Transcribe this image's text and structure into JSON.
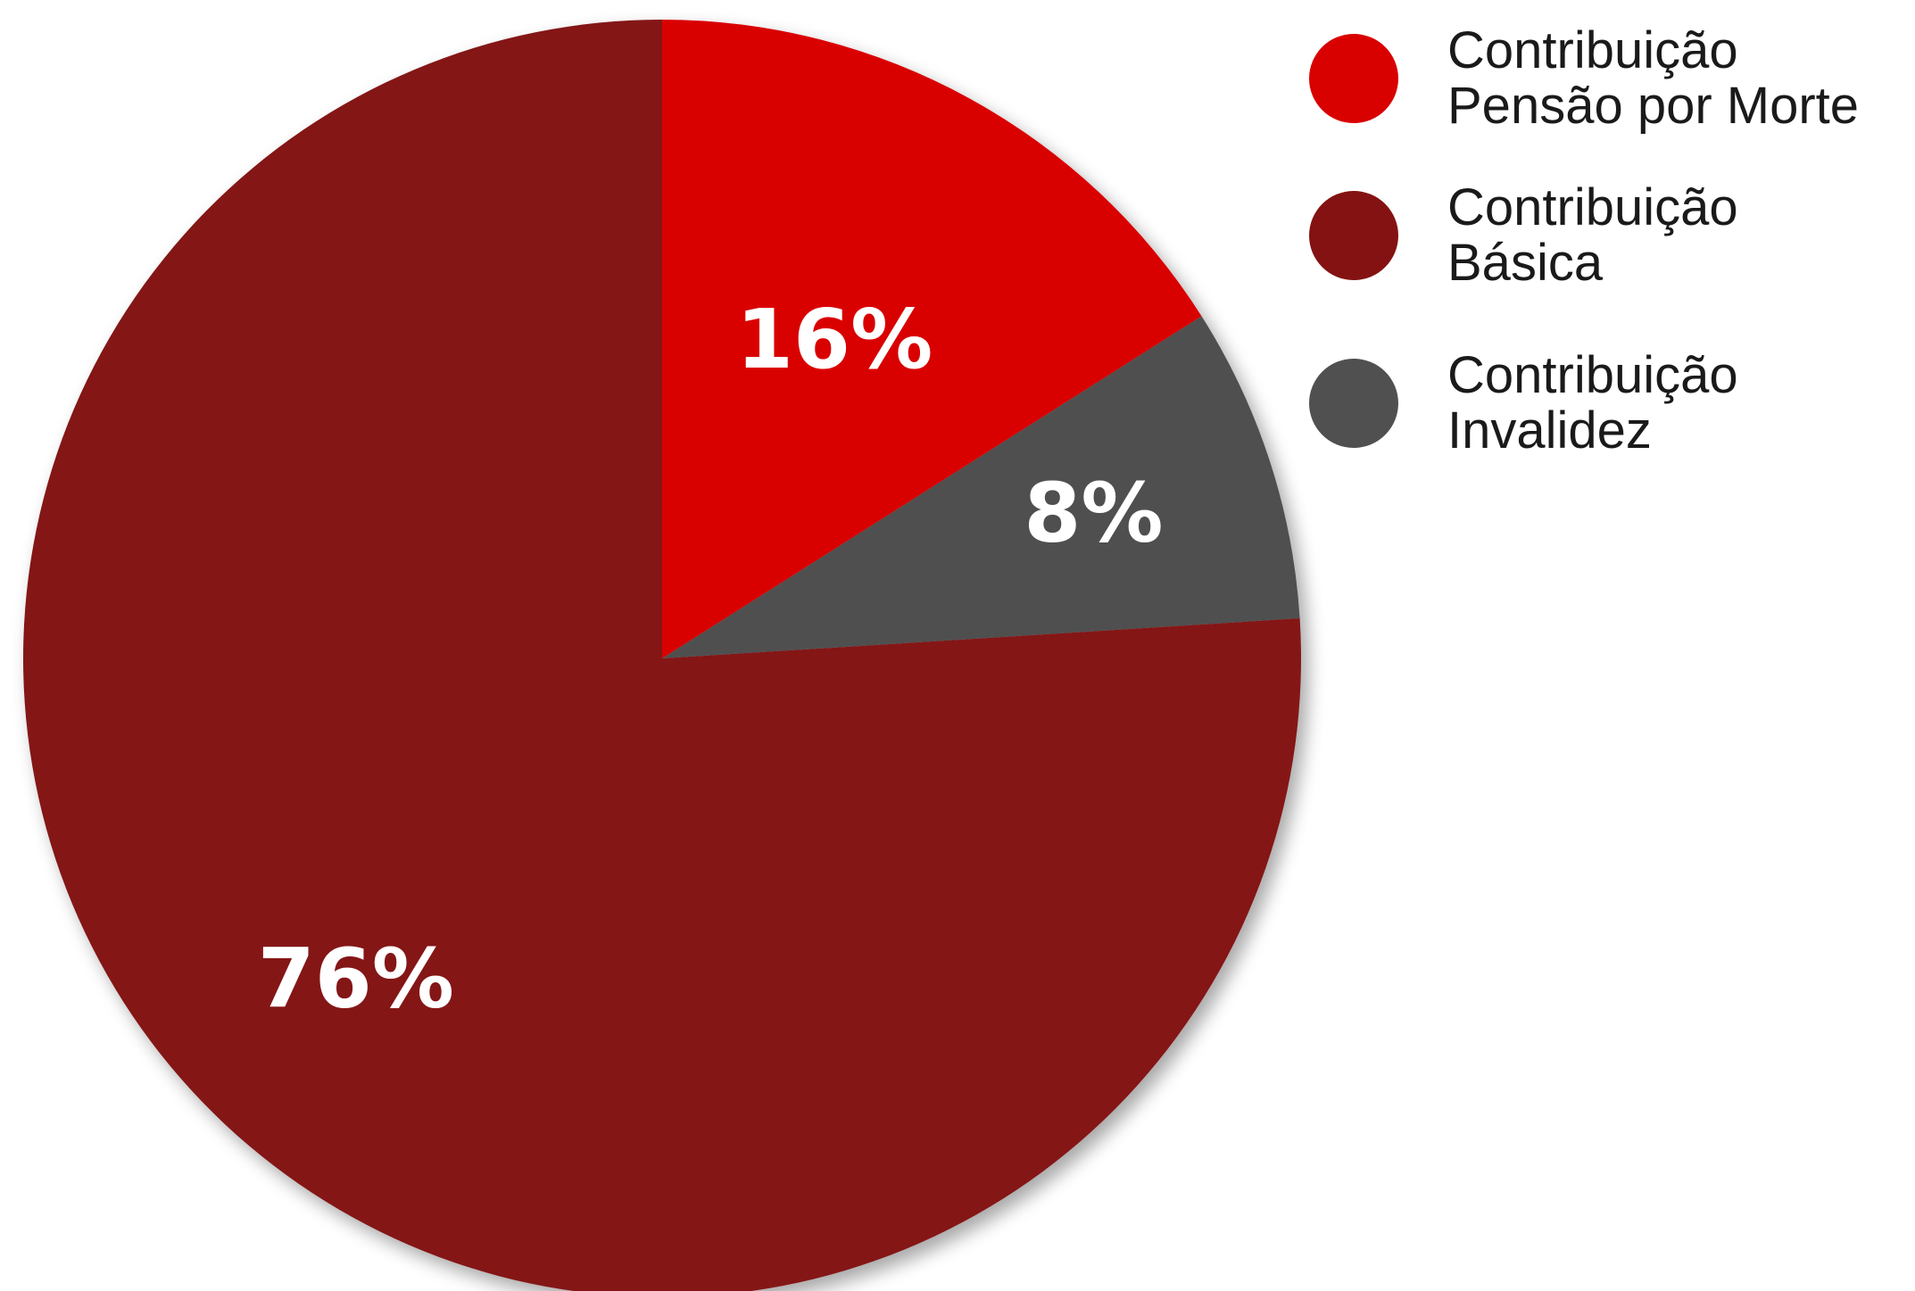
{
  "chart_data": {
    "type": "pie",
    "slices": [
      {
        "name": "Contribuição Pensão por Morte",
        "label": "16%",
        "value": 16,
        "color": "#d90000"
      },
      {
        "name": "Contribuição Invalidez",
        "label": "8%",
        "value": 8,
        "color": "#505050"
      },
      {
        "name": "Contribuição Básica",
        "label": "76%",
        "value": 76,
        "color": "#841212"
      }
    ],
    "start_angle_deg": 0,
    "direction": "clockwise",
    "legend": {
      "placement": "top-right",
      "items": [
        {
          "lines": [
            "Contribuição",
            "Pensão por Morte"
          ],
          "color": "#d90000"
        },
        {
          "lines": [
            "Contribuição",
            "Básica"
          ],
          "color": "#841212"
        },
        {
          "lines": [
            "Contribuição",
            "Invalidez"
          ],
          "color": "#505050"
        }
      ]
    }
  }
}
